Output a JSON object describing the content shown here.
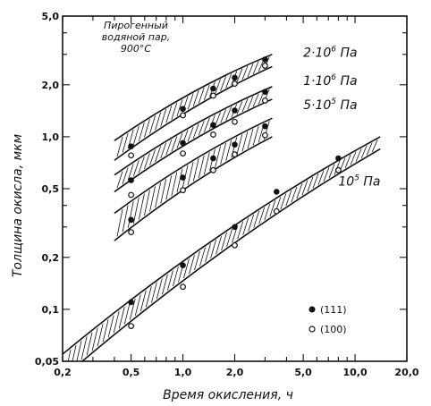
{
  "chart_data": {
    "type": "line",
    "title": "",
    "xlabel": "Время окисления, ч",
    "ylabel": "Толщина окисла, мкм",
    "xscale": "log",
    "yscale": "log",
    "xlim": [
      0.2,
      20.0
    ],
    "ylim": [
      0.05,
      5.0
    ],
    "x_ticks": [
      {
        "value": 0.2,
        "label": "0,2"
      },
      {
        "value": 0.5,
        "label": "0,5"
      },
      {
        "value": 1.0,
        "label": "1,0"
      },
      {
        "value": 2.0,
        "label": "2,0"
      },
      {
        "value": 5.0,
        "label": "5,0"
      },
      {
        "value": 10.0,
        "label": "10,0"
      },
      {
        "value": 20.0,
        "label": "20,0"
      }
    ],
    "y_ticks": [
      {
        "value": 0.05,
        "label": "0,05"
      },
      {
        "value": 0.1,
        "label": "0,1"
      },
      {
        "value": 0.2,
        "label": "0,2"
      },
      {
        "value": 0.5,
        "label": "0,5"
      },
      {
        "value": 1.0,
        "label": "1,0"
      },
      {
        "value": 2.0,
        "label": "2,0"
      },
      {
        "value": 5.0,
        "label": "5,0"
      }
    ],
    "condition_text": [
      "Пирогенный",
      "водяной пар,",
      "900°C"
    ],
    "series": [
      {
        "name": "2·10⁶ Па",
        "label_parts": {
          "base": "2·10",
          "exp": "6",
          "unit": " Па"
        },
        "label_anchor": {
          "x": 5.0,
          "y": 2.9
        },
        "band_x": [
          0.4,
          3.3
        ],
        "band_upper": [
          0.95,
          3.0
        ],
        "band_lower": [
          0.73,
          2.55
        ],
        "points_111": {
          "x": [
            0.5,
            1.0,
            1.5,
            2.0,
            3.0
          ],
          "y": [
            0.88,
            1.45,
            1.9,
            2.2,
            2.8
          ]
        },
        "points_100": {
          "x": [
            0.5,
            1.0,
            1.5,
            2.0,
            3.0
          ],
          "y": [
            0.78,
            1.33,
            1.73,
            2.03,
            2.58
          ]
        }
      },
      {
        "name": "1·10⁶ Па",
        "label_parts": {
          "base": "1·10",
          "exp": "6",
          "unit": " Па"
        },
        "label_anchor": {
          "x": 5.0,
          "y": 2.0
        },
        "band_x": [
          0.4,
          3.3
        ],
        "band_upper": [
          0.6,
          1.95
        ],
        "band_lower": [
          0.48,
          1.65
        ],
        "points_111": {
          "x": [
            0.5,
            1.0,
            1.5,
            2.0,
            3.0
          ],
          "y": [
            0.56,
            0.92,
            1.17,
            1.42,
            1.82
          ]
        },
        "points_100": {
          "x": [
            0.5,
            1.0,
            1.5,
            2.0,
            3.0
          ],
          "y": [
            0.46,
            0.8,
            1.03,
            1.22,
            1.62
          ]
        }
      },
      {
        "name": "5·10⁵ Па",
        "label_parts": {
          "base": "5·10",
          "exp": "5",
          "unit": " Па"
        },
        "label_anchor": {
          "x": 5.0,
          "y": 1.45
        },
        "band_x": [
          0.4,
          3.3
        ],
        "band_upper": [
          0.36,
          1.28
        ],
        "band_lower": [
          0.25,
          1.0
        ],
        "points_111": {
          "x": [
            0.5,
            1.0,
            1.5,
            2.0,
            3.0
          ],
          "y": [
            0.33,
            0.58,
            0.75,
            0.9,
            1.15
          ]
        },
        "points_100": {
          "x": [
            0.5,
            1.0,
            1.5,
            2.0,
            3.0
          ],
          "y": [
            0.28,
            0.49,
            0.64,
            0.79,
            1.02
          ]
        }
      },
      {
        "name": "10⁵ Па",
        "label_parts": {
          "base": "10",
          "exp": "5",
          "unit": " Па"
        },
        "label_anchor": {
          "x": 8.0,
          "y": 0.52
        },
        "band_x": [
          0.2,
          14.0
        ],
        "band_upper": [
          0.055,
          1.0
        ],
        "band_lower": [
          0.04,
          0.85
        ],
        "points_111": {
          "x": [
            0.5,
            1.0,
            2.0,
            3.5,
            8.0
          ],
          "y": [
            0.11,
            0.18,
            0.3,
            0.48,
            0.75
          ]
        },
        "points_100": {
          "x": [
            0.5,
            1.0,
            2.0,
            3.5,
            8.0
          ],
          "y": [
            0.08,
            0.135,
            0.235,
            0.37,
            0.64
          ]
        }
      }
    ],
    "legend": [
      {
        "marker": "filled",
        "label": "(111)"
      },
      {
        "marker": "open",
        "label": "(100)"
      }
    ],
    "legend_position": "bottom-right"
  }
}
